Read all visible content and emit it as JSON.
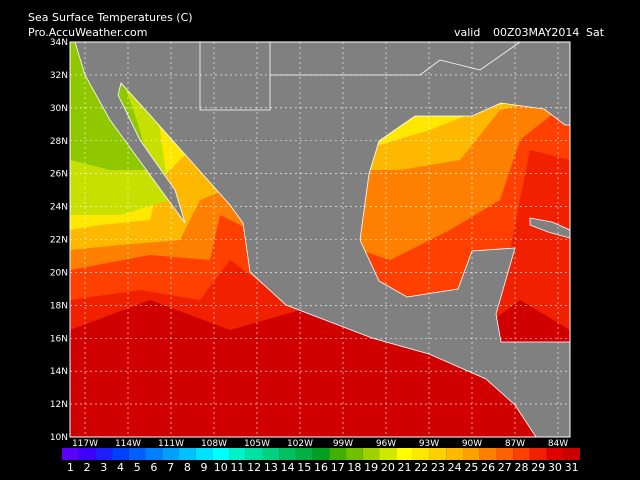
{
  "header": {
    "title": "Sea Surface Temperatures (C)",
    "source": "Pro.AccuWeather.com",
    "valid": "valid",
    "time": "00Z03MAY2014",
    "day": "Sat"
  },
  "map": {
    "lat_labels": [
      "34N",
      "32N",
      "30N",
      "28N",
      "26N",
      "24N",
      "22N",
      "20N",
      "18N",
      "16N",
      "14N",
      "12N",
      "10N"
    ],
    "lon_labels": [
      "117W",
      "114W",
      "111W",
      "108W",
      "105W",
      "102W",
      "99W",
      "96W",
      "93W",
      "90W",
      "87W",
      "84W"
    ]
  },
  "legend": {
    "labels": [
      1,
      2,
      3,
      4,
      5,
      6,
      7,
      8,
      9,
      10,
      11,
      12,
      13,
      14,
      15,
      16,
      17,
      18,
      19,
      20,
      21,
      22,
      23,
      24,
      25,
      26,
      27,
      28,
      29,
      30,
      31
    ],
    "colors": [
      "#5a00ff",
      "#3c00ff",
      "#1e1eff",
      "#0040ff",
      "#0060ff",
      "#0080ff",
      "#00a0ff",
      "#00c0ff",
      "#00e0ff",
      "#00ffff",
      "#00f0c8",
      "#00e0a0",
      "#00d080",
      "#00c060",
      "#00b040",
      "#00a020",
      "#40b000",
      "#70c000",
      "#a0d000",
      "#d0e800",
      "#ffff00",
      "#ffe800",
      "#ffd000",
      "#ffb800",
      "#ffa000",
      "#ff8000",
      "#ff6000",
      "#ff4000",
      "#f02000",
      "#e00000",
      "#c80000"
    ]
  }
}
